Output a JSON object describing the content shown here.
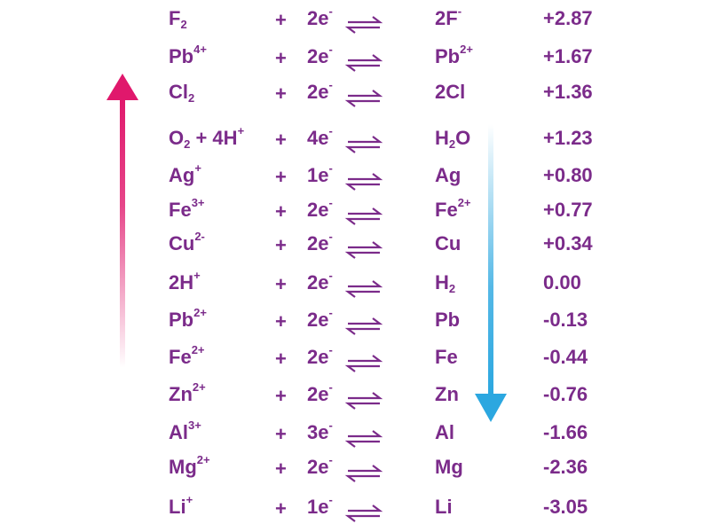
{
  "rows": [
    {
      "oxidant": [
        {
          "text": "F"
        },
        {
          "sub": "2"
        }
      ],
      "plus": "+",
      "electrons": [
        {
          "text": "2e"
        },
        {
          "sup": "-"
        }
      ],
      "reductant": [
        {
          "text": "2F"
        },
        {
          "sup": "-"
        }
      ],
      "potential": "+2.87"
    },
    {
      "oxidant": [
        {
          "text": "Pb"
        },
        {
          "sup": "4+"
        }
      ],
      "plus": "+",
      "electrons": [
        {
          "text": "2e"
        },
        {
          "sup": "-"
        }
      ],
      "reductant": [
        {
          "text": "Pb"
        },
        {
          "sup": "2+"
        }
      ],
      "potential": "+1.67"
    },
    {
      "oxidant": [
        {
          "text": "Cl"
        },
        {
          "sub": "2"
        }
      ],
      "plus": "+",
      "electrons": [
        {
          "text": "2e"
        },
        {
          "sup": "-"
        }
      ],
      "reductant": [
        {
          "text": "2Cl"
        }
      ],
      "potential": "+1.36"
    },
    {
      "oxidant": [
        {
          "text": "O"
        },
        {
          "sub": "2"
        },
        {
          "text": " + 4H"
        },
        {
          "sup": "+"
        }
      ],
      "plus": "+",
      "electrons": [
        {
          "text": "4e"
        },
        {
          "sup": "-"
        }
      ],
      "reductant": [
        {
          "text": "H"
        },
        {
          "sub": "2"
        },
        {
          "text": "O"
        }
      ],
      "potential": "+1.23"
    },
    {
      "oxidant": [
        {
          "text": "Ag"
        },
        {
          "sup": "+"
        }
      ],
      "plus": "+",
      "electrons": [
        {
          "text": "1e"
        },
        {
          "sup": "-"
        }
      ],
      "reductant": [
        {
          "text": "Ag"
        }
      ],
      "potential": "+0.80"
    },
    {
      "oxidant": [
        {
          "text": "Fe"
        },
        {
          "sup": "3+"
        }
      ],
      "plus": "+",
      "electrons": [
        {
          "text": "2e"
        },
        {
          "sup": "-"
        }
      ],
      "reductant": [
        {
          "text": "Fe"
        },
        {
          "sup": "2+"
        }
      ],
      "potential": "+0.77"
    },
    {
      "oxidant": [
        {
          "text": "Cu"
        },
        {
          "sup": "2-"
        }
      ],
      "plus": "+",
      "electrons": [
        {
          "text": "2e"
        },
        {
          "sup": "-"
        }
      ],
      "reductant": [
        {
          "text": "Cu"
        }
      ],
      "potential": "+0.34"
    },
    {
      "oxidant": [
        {
          "text": "2H"
        },
        {
          "sup": "+"
        }
      ],
      "plus": "+",
      "electrons": [
        {
          "text": "2e"
        },
        {
          "sup": "-"
        }
      ],
      "reductant": [
        {
          "text": "H"
        },
        {
          "sub": "2"
        }
      ],
      "potential": "0.00"
    },
    {
      "oxidant": [
        {
          "text": "Pb"
        },
        {
          "sup": "2+"
        }
      ],
      "plus": "+",
      "electrons": [
        {
          "text": "2e"
        },
        {
          "sup": "-"
        }
      ],
      "reductant": [
        {
          "text": "Pb"
        }
      ],
      "potential": "-0.13"
    },
    {
      "oxidant": [
        {
          "text": "Fe"
        },
        {
          "sup": "2+"
        }
      ],
      "plus": "+",
      "electrons": [
        {
          "text": "2e"
        },
        {
          "sup": "-"
        }
      ],
      "reductant": [
        {
          "text": "Fe"
        }
      ],
      "potential": "-0.44"
    },
    {
      "oxidant": [
        {
          "text": "Zn"
        },
        {
          "sup": "2+"
        }
      ],
      "plus": "+",
      "electrons": [
        {
          "text": "2e"
        },
        {
          "sup": "-"
        }
      ],
      "reductant": [
        {
          "text": "Zn"
        }
      ],
      "potential": "-0.76"
    },
    {
      "oxidant": [
        {
          "text": "Al"
        },
        {
          "sup": "3+"
        }
      ],
      "plus": "+",
      "electrons": [
        {
          "text": "3e"
        },
        {
          "sup": "-"
        }
      ],
      "reductant": [
        {
          "text": "Al"
        }
      ],
      "potential": "-1.66"
    },
    {
      "oxidant": [
        {
          "text": "Mg"
        },
        {
          "sup": "2+"
        }
      ],
      "plus": "+",
      "electrons": [
        {
          "text": "2e"
        },
        {
          "sup": "-"
        }
      ],
      "reductant": [
        {
          "text": "Mg"
        }
      ],
      "potential": "-2.36"
    },
    {
      "oxidant": [
        {
          "text": "Li"
        },
        {
          "sup": "+"
        }
      ],
      "plus": "+",
      "electrons": [
        {
          "text": "1e"
        },
        {
          "sup": "-"
        }
      ],
      "reductant": [
        {
          "text": "Li"
        }
      ],
      "potential": "-3.05"
    }
  ]
}
